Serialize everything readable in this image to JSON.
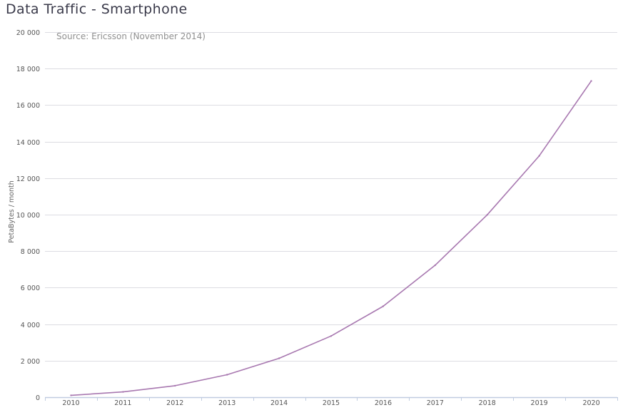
{
  "chart_data": {
    "type": "line",
    "title": "Data Traffic - Smartphone",
    "source_note": "Source: Ericsson (November 2014)",
    "ylabel": "PetaBytes / month",
    "xlabel": "",
    "x": [
      "2010",
      "2011",
      "2012",
      "2013",
      "2014",
      "2015",
      "2016",
      "2017",
      "2018",
      "2019",
      "2020"
    ],
    "ylim": [
      0,
      20000
    ],
    "yticks": [
      0,
      2000,
      4000,
      6000,
      8000,
      10000,
      12000,
      14000,
      16000,
      18000,
      20000
    ],
    "ytick_labels": [
      "0",
      "2 000",
      "4 000",
      "6 000",
      "8 000",
      "10 000",
      "12 000",
      "14 000",
      "16 000",
      "18 000",
      "20 000"
    ],
    "grid": true,
    "legend": "none",
    "series": [
      {
        "values": [
          100,
          290,
          630,
          1230,
          2130,
          3350,
          4980,
          7230,
          9990,
          13220,
          17320
        ],
        "color": "#a878b0"
      }
    ]
  }
}
